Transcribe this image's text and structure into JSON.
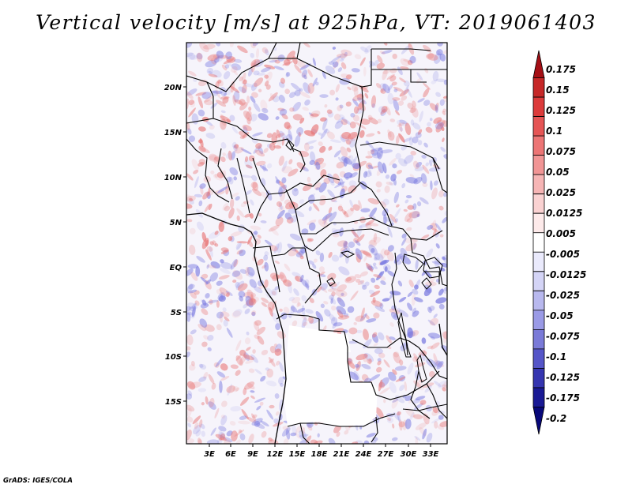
{
  "title": "Vertical velocity [m/s] at 925hPa, VT: 2019061403",
  "footer": "GrADS: IGES/COLA",
  "map": {
    "lat_labels": [
      "20N",
      "15N",
      "10N",
      "5N",
      "EQ",
      "5S",
      "10S",
      "15S"
    ],
    "lon_labels": [
      "3E",
      "6E",
      "9E",
      "12E",
      "15E",
      "18E",
      "21E",
      "24E",
      "27E",
      "30E",
      "33E"
    ]
  },
  "colorbar": {
    "labels": [
      "0.175",
      "0.15",
      "0.125",
      "0.1",
      "0.075",
      "0.05",
      "0.025",
      "0.0125",
      "0.005",
      "-0.005",
      "-0.0125",
      "-0.025",
      "-0.05",
      "-0.075",
      "-0.1",
      "-0.125",
      "-0.175",
      "-0.2"
    ],
    "colors": [
      "#a50f15",
      "#c62828",
      "#dc3b3b",
      "#e55555",
      "#ec7575",
      "#f19595",
      "#f6b5b5",
      "#fad2d2",
      "#fdeaea",
      "#ffffff",
      "#eaeafc",
      "#d4d4f6",
      "#b8b8ee",
      "#9a9ae6",
      "#7a7ad8",
      "#5555c8",
      "#3535b0",
      "#1a1a95",
      "#08087a"
    ]
  },
  "field": {
    "positive_color": "#e87878",
    "negative_color": "#7878e0"
  }
}
